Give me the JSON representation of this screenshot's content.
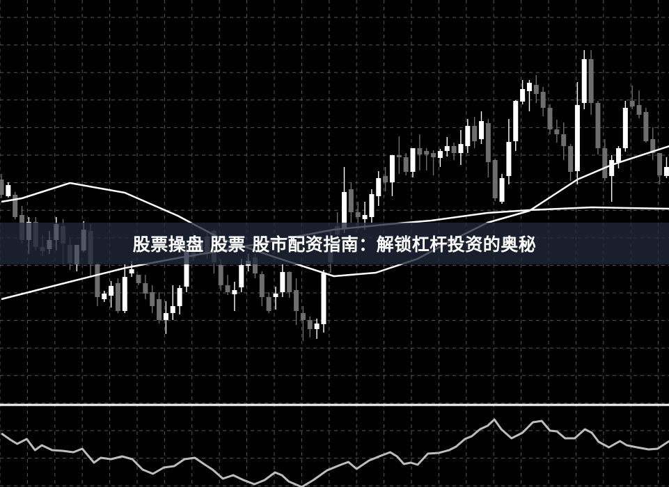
{
  "title": "股票操盘 股票 股市配资指南：解锁杠杆投资的奥秘",
  "colors": {
    "background": "#000000",
    "bull": "#ffffff",
    "bear": "#6e6e6e",
    "grid": "#5a5a5a",
    "ma": "#ffffff",
    "oscillator": "#bdbdbd",
    "banner": "#202a3a"
  },
  "chart_data": {
    "type": "candlestick",
    "grid": true,
    "ohlc_format": [
      "open",
      "high",
      "low",
      "close"
    ],
    "candles": [
      [
        442,
        450,
        415,
        420
      ],
      [
        418,
        438,
        416,
        434
      ],
      [
        420,
        424,
        385,
        388
      ],
      [
        391,
        404,
        350,
        355
      ],
      [
        355,
        388,
        335,
        381
      ],
      [
        381,
        388,
        340,
        345
      ],
      [
        345,
        362,
        332,
        339
      ],
      [
        342,
        368,
        335,
        355
      ],
      [
        355,
        388,
        340,
        378
      ],
      [
        375,
        385,
        320,
        350
      ],
      [
        348,
        358,
        312,
        322
      ],
      [
        320,
        348,
        310,
        348
      ],
      [
        340,
        382,
        338,
        370
      ],
      [
        368,
        378,
        302,
        320
      ],
      [
        320,
        322,
        260,
        273
      ],
      [
        270,
        282,
        266,
        278
      ],
      [
        275,
        296,
        258,
        289
      ],
      [
        293,
        300,
        250,
        253
      ],
      [
        253,
        320,
        250,
        302
      ],
      [
        307,
        325,
        302,
        313
      ],
      [
        305,
        305,
        290,
        293
      ],
      [
        293,
        305,
        270,
        278
      ],
      [
        280,
        290,
        250,
        260
      ],
      [
        270,
        280,
        235,
        240
      ],
      [
        240,
        267,
        220,
        250
      ],
      [
        250,
        290,
        240,
        260
      ],
      [
        260,
        290,
        248,
        286
      ],
      [
        288,
        348,
        280,
        340
      ],
      [
        360,
        365,
        325,
        330
      ],
      [
        340,
        360,
        335,
        355
      ],
      [
        360,
        365,
        328,
        335
      ],
      [
        368,
        370,
        307,
        323
      ],
      [
        319,
        328,
        282,
        290
      ],
      [
        290,
        305,
        276,
        280
      ],
      [
        277,
        295,
        253,
        283
      ],
      [
        287,
        328,
        280,
        319
      ],
      [
        318,
        335,
        310,
        325
      ],
      [
        330,
        335,
        300,
        307
      ],
      [
        306,
        310,
        260,
        273
      ],
      [
        273,
        280,
        250,
        253
      ],
      [
        273,
        288,
        255,
        278
      ],
      [
        280,
        320,
        273,
        309
      ],
      [
        309,
        310,
        272,
        280
      ],
      [
        283,
        300,
        233,
        253
      ],
      [
        250,
        260,
        210,
        240
      ],
      [
        240,
        245,
        215,
        227
      ],
      [
        227,
        242,
        213,
        235
      ],
      [
        234,
        312,
        222,
        307
      ],
      [
        340,
        370,
        308,
        323
      ],
      [
        375,
        395,
        355,
        363
      ],
      [
        372,
        460,
        365,
        424
      ],
      [
        428,
        438,
        380,
        395
      ],
      [
        395,
        410,
        370,
        388
      ],
      [
        385,
        410,
        370,
        391
      ],
      [
        388,
        428,
        380,
        421
      ],
      [
        418,
        454,
        404,
        444
      ],
      [
        447,
        460,
        425,
        438
      ],
      [
        438,
        477,
        418,
        477
      ],
      [
        477,
        504,
        450,
        474
      ],
      [
        474,
        480,
        448,
        453
      ],
      [
        453,
        487,
        445,
        487
      ],
      [
        487,
        507,
        455,
        478
      ],
      [
        483,
        487,
        455,
        478
      ],
      [
        480,
        484,
        448,
        474
      ],
      [
        473,
        486,
        460,
        483
      ],
      [
        483,
        503,
        475,
        490
      ],
      [
        490,
        495,
        470,
        480
      ],
      [
        480,
        513,
        463,
        493
      ],
      [
        490,
        529,
        480,
        519
      ],
      [
        519,
        532,
        487,
        497
      ],
      [
        500,
        540,
        493,
        526
      ],
      [
        523,
        529,
        445,
        467
      ],
      [
        470,
        472,
        411,
        415
      ],
      [
        410,
        450,
        407,
        444
      ],
      [
        447,
        529,
        435,
        496
      ],
      [
        497,
        556,
        483,
        555
      ],
      [
        554,
        585,
        550,
        572
      ],
      [
        569,
        585,
        540,
        581
      ],
      [
        578,
        592,
        552,
        565
      ],
      [
        568,
        575,
        533,
        545
      ],
      [
        545,
        550,
        507,
        514
      ],
      [
        514,
        528,
        495,
        507
      ],
      [
        507,
        524,
        470,
        490
      ],
      [
        490,
        493,
        440,
        453
      ],
      [
        454,
        582,
        435,
        549
      ],
      [
        552,
        628,
        543,
        615
      ],
      [
        615,
        628,
        535,
        552
      ],
      [
        552,
        555,
        478,
        487
      ],
      [
        487,
        500,
        440,
        444
      ],
      [
        447,
        477,
        410,
        470
      ],
      [
        467,
        490,
        458,
        487
      ],
      [
        487,
        555,
        482,
        545
      ],
      [
        555,
        577,
        543,
        547
      ],
      [
        549,
        570,
        530,
        535
      ],
      [
        539,
        545,
        495,
        497
      ],
      [
        500,
        517,
        470,
        480
      ],
      [
        480,
        480,
        435,
        448
      ],
      [
        447,
        474,
        444,
        460
      ]
    ],
    "moving_averages": [
      {
        "points": [
          [
            0,
            410
          ],
          [
            3,
            415
          ],
          [
            10,
            437
          ],
          [
            18,
            423
          ],
          [
            25.7,
            390
          ],
          [
            32,
            357
          ],
          [
            40,
            330
          ],
          [
            48.5,
            303
          ],
          [
            54.6,
            308
          ],
          [
            60.7,
            328
          ],
          [
            65.8,
            355
          ],
          [
            70.9,
            380
          ],
          [
            77,
            397
          ],
          [
            84,
            442
          ],
          [
            89,
            463
          ],
          [
            97.4,
            490
          ]
        ]
      },
      {
        "points": [
          [
            0,
            270
          ],
          [
            10,
            295
          ],
          [
            18.1,
            315
          ],
          [
            26.2,
            330
          ],
          [
            32.3,
            340
          ],
          [
            40.4,
            355
          ],
          [
            48.5,
            370
          ],
          [
            56.7,
            378
          ],
          [
            62.7,
            383
          ],
          [
            70.9,
            394
          ],
          [
            77,
            398
          ],
          [
            86.1,
            402
          ],
          [
            97.4,
            400
          ]
        ]
      }
    ],
    "oscillator": {
      "points": [
        [
          0,
          77
        ],
        [
          1.3,
          68
        ],
        [
          2.3,
          62
        ],
        [
          3.7,
          69
        ],
        [
          4.9,
          53
        ],
        [
          5.9,
          60
        ],
        [
          7.4,
          53
        ],
        [
          8.9,
          52
        ],
        [
          10.5,
          50
        ],
        [
          11.8,
          55
        ],
        [
          13.5,
          35
        ],
        [
          14.5,
          42
        ],
        [
          16,
          40
        ],
        [
          17.6,
          44
        ],
        [
          19.1,
          40
        ],
        [
          20.6,
          25
        ],
        [
          22.1,
          19
        ],
        [
          23.7,
          28
        ],
        [
          25.2,
          30
        ],
        [
          26.7,
          40
        ],
        [
          28.2,
          42
        ],
        [
          29.7,
          32
        ],
        [
          30.8,
          25
        ],
        [
          32.3,
          12
        ],
        [
          33.8,
          17
        ],
        [
          35.3,
          10
        ],
        [
          36.9,
          4
        ],
        [
          38.4,
          10
        ],
        [
          39.9,
          21
        ],
        [
          40.9,
          17
        ],
        [
          41.9,
          8
        ],
        [
          43.8,
          0
        ],
        [
          45.5,
          10
        ],
        [
          47.5,
          24
        ],
        [
          49.5,
          32
        ],
        [
          50.6,
          36
        ],
        [
          51.8,
          26
        ],
        [
          53.6,
          38
        ],
        [
          55.1,
          44
        ],
        [
          56.7,
          50
        ],
        [
          57.7,
          44
        ],
        [
          58.7,
          33
        ],
        [
          59.7,
          35
        ],
        [
          60.7,
          32
        ],
        [
          62.2,
          48
        ],
        [
          63.8,
          49
        ],
        [
          65.3,
          53
        ],
        [
          66.3,
          58
        ],
        [
          67.6,
          69
        ],
        [
          68.6,
          73
        ],
        [
          69.8,
          83
        ],
        [
          70.9,
          88
        ],
        [
          71.9,
          97
        ],
        [
          72.9,
          83
        ],
        [
          74.4,
          70
        ],
        [
          76,
          78
        ],
        [
          77.5,
          93
        ],
        [
          78.8,
          95
        ],
        [
          80,
          81
        ],
        [
          81,
          80
        ],
        [
          82.2,
          70
        ],
        [
          83.6,
          70
        ],
        [
          85.1,
          83
        ],
        [
          86.1,
          78
        ],
        [
          87.1,
          65
        ],
        [
          88.6,
          57
        ],
        [
          90.2,
          66
        ],
        [
          91.2,
          60
        ],
        [
          92.7,
          57
        ],
        [
          94.4,
          54
        ],
        [
          95.7,
          55
        ],
        [
          97.4,
          66
        ]
      ]
    }
  }
}
